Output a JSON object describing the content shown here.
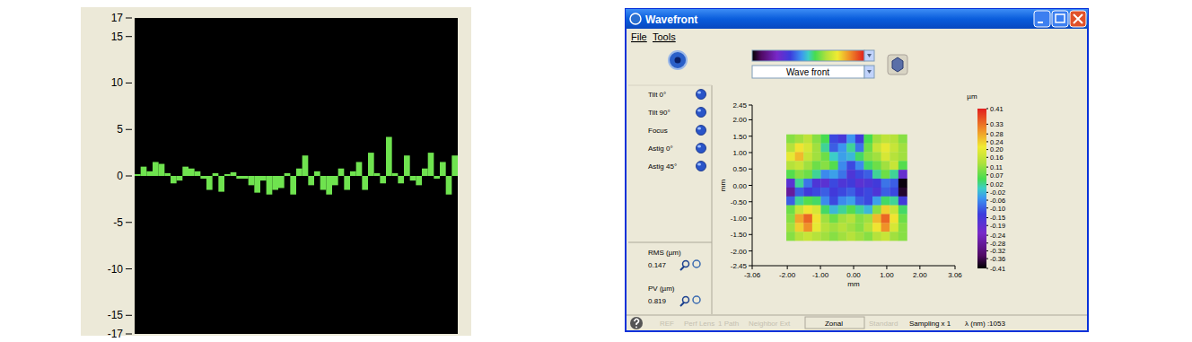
{
  "chart_data": [
    {
      "type": "bar",
      "values": [
        0.2,
        1.0,
        0.5,
        1.5,
        1.3,
        0.3,
        -0.8,
        -0.5,
        1.0,
        0.8,
        0.5,
        -0.3,
        -1.5,
        0.3,
        -1.7,
        0.2,
        0.4,
        -0.3,
        -0.3,
        -1.0,
        -1.8,
        -0.5,
        -2.0,
        -1.5,
        -1.3,
        0.3,
        -2.0,
        0.8,
        2.2,
        -1.0,
        0.5,
        -1.5,
        -2.0,
        -1.0,
        0.8,
        -1.5,
        0.5,
        1.5,
        -1.5,
        2.5,
        0.3,
        -0.8,
        4.2,
        0.3,
        -0.8,
        2.2,
        -0.5,
        -1.0,
        0.8,
        2.5,
        -0.3,
        1.5,
        -2.0,
        2.2
      ],
      "color": "#6fe34f",
      "ylim": [
        -17,
        17
      ],
      "yticks": [
        17,
        15,
        10,
        5,
        0,
        -5,
        -10,
        -15,
        -17
      ],
      "tick_labels": "y"
    },
    {
      "type": "heatmap",
      "x": [
        -1.9,
        -1.64,
        -1.38,
        -1.12,
        -0.86,
        -0.6,
        -0.34,
        -0.08,
        0.18,
        0.44,
        0.7,
        0.96,
        1.22,
        1.48
      ],
      "y": [
        1.42,
        1.15,
        0.88,
        0.61,
        0.34,
        0.07,
        -0.2,
        -0.47,
        -0.74,
        -1.01,
        -1.28,
        -1.55
      ],
      "cells": [
        [
          0.1,
          0.12,
          0.15,
          0.1,
          0.05,
          -0.12,
          -0.15,
          -0.05,
          -0.14,
          0.05,
          0.12,
          0.15,
          0.14,
          0.1
        ],
        [
          0.14,
          0.22,
          0.18,
          0.12,
          0.02,
          -0.1,
          -0.05,
          0.02,
          -0.08,
          0.08,
          0.16,
          0.2,
          0.16,
          0.12
        ],
        [
          0.2,
          0.26,
          0.16,
          0.12,
          0.08,
          0.0,
          -0.04,
          -0.02,
          0.04,
          0.1,
          0.12,
          0.18,
          0.14,
          0.12
        ],
        [
          0.14,
          0.16,
          0.12,
          0.08,
          0.1,
          0.06,
          -0.06,
          -0.12,
          -0.06,
          0.04,
          0.08,
          0.12,
          0.16,
          0.06
        ],
        [
          0.06,
          0.1,
          0.08,
          0.02,
          -0.06,
          -0.04,
          -0.08,
          -0.16,
          -0.12,
          -0.1,
          0.02,
          0.08,
          0.02,
          -0.2
        ],
        [
          -0.18,
          0.02,
          -0.08,
          -0.16,
          -0.18,
          -0.12,
          -0.16,
          -0.14,
          -0.18,
          -0.16,
          -0.14,
          -0.08,
          -0.1,
          -0.4
        ],
        [
          -0.28,
          -0.1,
          -0.14,
          -0.12,
          -0.1,
          -0.14,
          -0.12,
          -0.1,
          -0.14,
          -0.12,
          -0.16,
          -0.1,
          -0.12,
          -0.38
        ],
        [
          -0.1,
          0.02,
          0.06,
          0.04,
          -0.06,
          -0.12,
          -0.06,
          -0.04,
          -0.1,
          -0.12,
          -0.04,
          0.04,
          0.02,
          -0.14
        ],
        [
          0.08,
          0.16,
          0.22,
          0.18,
          0.04,
          -0.02,
          0.02,
          0.06,
          0.02,
          -0.02,
          0.1,
          0.24,
          0.16,
          0.04
        ],
        [
          0.1,
          0.28,
          0.34,
          0.22,
          0.12,
          0.08,
          0.12,
          0.14,
          0.1,
          0.12,
          0.26,
          0.34,
          0.22,
          0.08
        ],
        [
          0.12,
          0.24,
          0.3,
          0.2,
          0.14,
          0.12,
          0.14,
          0.12,
          0.1,
          0.14,
          0.22,
          0.3,
          0.18,
          0.1
        ],
        [
          0.1,
          0.14,
          0.16,
          0.14,
          0.12,
          0.1,
          0.12,
          0.14,
          0.12,
          0.1,
          0.14,
          0.16,
          0.12,
          0.1
        ]
      ],
      "xlim": [
        -3.06,
        3.06
      ],
      "ylim": [
        -2.45,
        2.45
      ],
      "xticks": [
        -3.06,
        {
          "value": -2,
          "label": "-2.00"
        },
        {
          "value": -1,
          "label": "-1.00"
        },
        {
          "value": 0,
          "label": "0.00"
        },
        {
          "value": 1,
          "label": "1.00"
        },
        {
          "value": 2,
          "label": "2.00"
        },
        3.06
      ],
      "yticks": [
        2.45,
        {
          "value": 2,
          "label": "2.00"
        },
        {
          "value": 1.5,
          "label": "1.50"
        },
        {
          "value": 1,
          "label": "1.00"
        },
        {
          "value": 0.5,
          "label": "0.50"
        },
        {
          "value": 0,
          "label": "0.00"
        },
        {
          "value": -0.5,
          "label": "-0.50"
        },
        {
          "value": -1,
          "label": "-1.00"
        },
        {
          "value": -1.5,
          "label": "-1.50"
        },
        {
          "value": -2,
          "label": "-2.00"
        },
        -2.45
      ],
      "x_label": "mm",
      "y_label": "mm",
      "colorbar_label": "µm",
      "colorbar_range": [
        -0.41,
        0.41
      ],
      "colorbar_ticks": [
        0.41,
        0.33,
        0.28,
        0.24,
        {
          "value": 0.2,
          "label": "0.20"
        },
        0.16,
        0.11,
        0.07,
        0.02,
        -0.02,
        -0.06,
        {
          "value": -0.1,
          "label": "-0.10"
        },
        -0.15,
        -0.19,
        -0.24,
        -0.28,
        -0.32,
        -0.36,
        -0.41
      ]
    }
  ],
  "window": {
    "title": "Wavefront",
    "menu": [
      "File",
      "Tools"
    ],
    "view_mode": "Wave front",
    "aberrations": [
      "Tilt 0°",
      "Tilt 90°",
      "Focus",
      "Astig 0°",
      "Astig 45°"
    ],
    "rms": {
      "label": "RMS (µm)",
      "value": 0.147
    },
    "pv": {
      "label": "PV (µm)",
      "value": 0.819
    },
    "status": [
      "REF",
      "Perf Lens",
      "1 Path",
      "Neighbor Ext",
      "Zonal",
      "Standard",
      "Sampling x 1",
      "λ (nm) :1053"
    ]
  }
}
